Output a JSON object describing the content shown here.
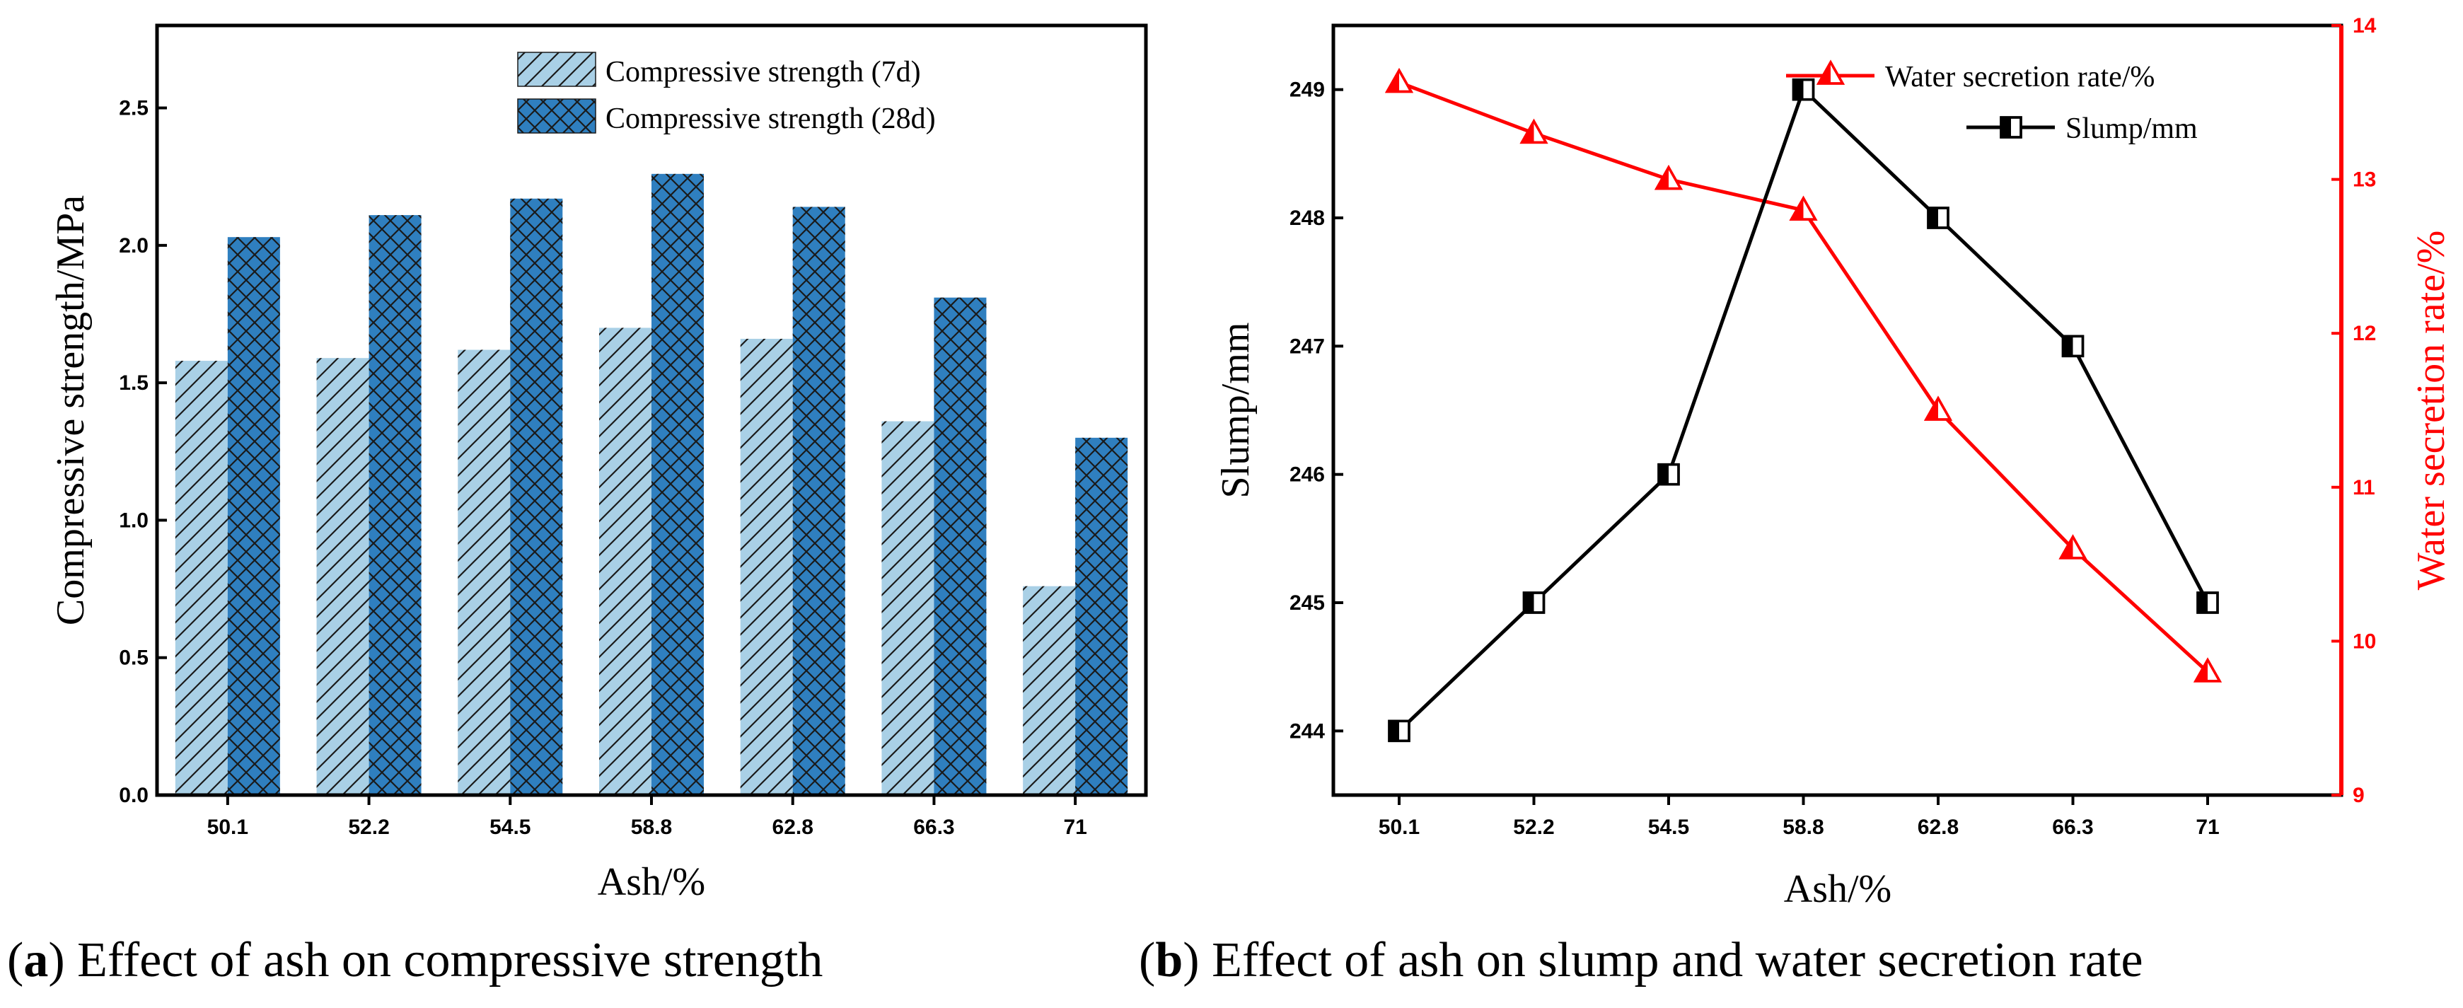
{
  "chart_data": [
    {
      "id": "a",
      "type": "bar",
      "caption_letter": "a",
      "caption_open": "(",
      "caption_close": ")",
      "caption_text": " Effect of ash on compressive strength",
      "xlabel": "Ash/%",
      "ylabel": "Compressive strength/MPa",
      "ylim": [
        0,
        2.8
      ],
      "yticks": [
        "0.0",
        "0.5",
        "1.0",
        "1.5",
        "2.0",
        "2.5"
      ],
      "categories": [
        "50.1",
        "52.2",
        "54.5",
        "58.8",
        "62.8",
        "66.3",
        "71"
      ],
      "series": [
        {
          "name": "Compressive strength (7d)",
          "values": [
            1.58,
            1.59,
            1.62,
            1.7,
            1.66,
            1.36,
            0.76
          ],
          "color": "#a9d0e6",
          "hatch": "diagonal"
        },
        {
          "name": "Compressive strength (28d)",
          "values": [
            2.03,
            2.11,
            2.17,
            2.26,
            2.14,
            1.81,
            1.3
          ],
          "color": "#2f7fbf",
          "hatch": "cross"
        }
      ],
      "legend_position": "top-right"
    },
    {
      "id": "b",
      "type": "line",
      "caption_letter": "b",
      "caption_open": "(",
      "caption_close": ")",
      "caption_text": " Effect of ash on slump and water secretion rate",
      "xlabel": "Ash/%",
      "ylabel_left": "Slump/mm",
      "ylabel_right": "Water secretion rate/%",
      "ylim_left": [
        243.5,
        249.5
      ],
      "ylim_right": [
        9,
        14
      ],
      "yticks_left": [
        "244",
        "245",
        "246",
        "247",
        "248",
        "249"
      ],
      "yticks_right": [
        "9",
        "10",
        "11",
        "12",
        "13",
        "14"
      ],
      "categories": [
        "50.1",
        "52.2",
        "54.5",
        "58.8",
        "62.8",
        "66.3",
        "71"
      ],
      "series": [
        {
          "name": "Water secretion rate/%",
          "axis": "right",
          "values": [
            13.63,
            13.3,
            13.0,
            12.8,
            11.5,
            10.6,
            9.8
          ],
          "color": "#ff0000",
          "marker": "half-triangle"
        },
        {
          "name": "Slump/mm",
          "axis": "left",
          "values": [
            244,
            245,
            246,
            249,
            248,
            247,
            245
          ],
          "color": "#000000",
          "marker": "half-square"
        }
      ],
      "legend_position": "top-right"
    }
  ]
}
